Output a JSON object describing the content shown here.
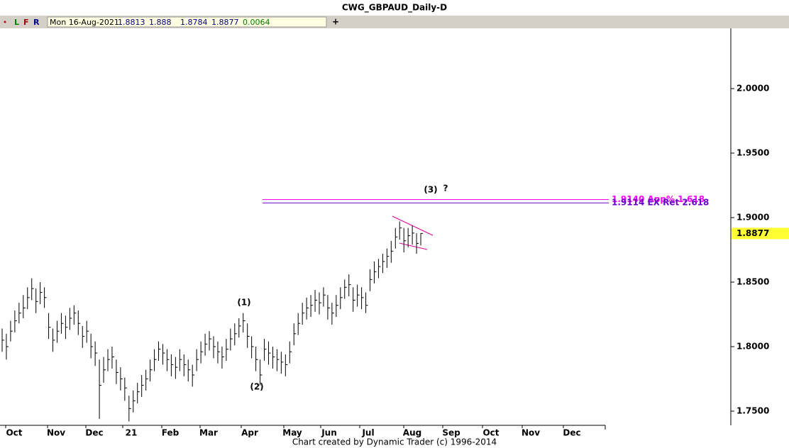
{
  "toolbar": {
    "dot": "•",
    "buttons": [
      "L",
      "F",
      "R"
    ],
    "date": "Mon 16-Aug-2021",
    "open": 1.8813,
    "high": 1.888,
    "low": 1.8784,
    "close": 1.8877,
    "change": 0.0064,
    "plus": "+"
  },
  "footer": "Chart created by Dynamic Trader  (c)  1996-2014",
  "chart_data": {
    "type": "ohlc",
    "title": "CWG_GBPAUD_Daily-D",
    "x_labels": [
      "Oct",
      "Nov",
      "Dec",
      "21",
      "Feb",
      "Mar",
      "Apr",
      "May",
      "Jun",
      "Jul",
      "Aug",
      "Sep",
      "Oct",
      "Nov",
      "Dec"
    ],
    "ylim": [
      1.7401,
      2.0467
    ],
    "yticks": [
      {
        "value": 1.75,
        "label": "1.7500"
      },
      {
        "value": 1.8,
        "label": "1.8000"
      },
      {
        "value": 1.85,
        "label": "1.8500"
      },
      {
        "value": 1.9,
        "label": "1.9000"
      },
      {
        "value": 1.95,
        "label": "1.9500"
      },
      {
        "value": 2.0,
        "label": "2.0000"
      }
    ],
    "high": [
      1.814,
      1.81,
      1.82,
      1.828,
      1.834,
      1.84,
      1.846,
      1.853,
      1.845,
      1.85,
      1.846,
      1.826,
      1.814,
      1.82,
      1.826,
      1.824,
      1.83,
      1.832,
      1.828,
      1.816,
      1.82,
      1.81,
      1.804,
      1.79,
      1.792,
      1.798,
      1.8,
      1.79,
      1.784,
      1.776,
      1.762,
      1.766,
      1.772,
      1.778,
      1.782,
      1.79,
      1.798,
      1.804,
      1.802,
      1.798,
      1.794,
      1.792,
      1.798,
      1.794,
      1.79,
      1.786,
      1.798,
      1.804,
      1.81,
      1.812,
      1.808,
      1.804,
      1.8,
      1.806,
      1.814,
      1.818,
      1.822,
      1.826,
      1.818,
      1.808,
      1.8,
      1.79,
      1.806,
      1.804,
      1.8,
      1.798,
      1.796,
      1.794,
      1.804,
      1.818,
      1.826,
      1.834,
      1.838,
      1.84,
      1.844,
      1.842,
      1.846,
      1.84,
      1.834,
      1.84,
      1.846,
      1.852,
      1.856,
      1.846,
      1.848,
      1.846,
      1.842,
      1.86,
      1.866,
      1.868,
      1.872,
      1.876,
      1.882,
      1.892,
      1.897,
      1.892,
      1.892,
      1.894,
      1.888,
      1.888
    ],
    "low": [
      1.796,
      1.79,
      1.804,
      1.811,
      1.818,
      1.822,
      1.829,
      1.836,
      1.826,
      1.833,
      1.83,
      1.806,
      1.796,
      1.803,
      1.81,
      1.806,
      1.813,
      1.817,
      1.809,
      1.799,
      1.803,
      1.791,
      1.785,
      1.744,
      1.772,
      1.781,
      1.783,
      1.771,
      1.766,
      1.758,
      1.742,
      1.749,
      1.756,
      1.761,
      1.766,
      1.773,
      1.781,
      1.789,
      1.786,
      1.781,
      1.777,
      1.775,
      1.781,
      1.777,
      1.773,
      1.769,
      1.781,
      1.787,
      1.793,
      1.797,
      1.791,
      1.787,
      1.783,
      1.789,
      1.797,
      1.801,
      1.807,
      1.811,
      1.799,
      1.791,
      1.781,
      1.77,
      1.789,
      1.786,
      1.783,
      1.781,
      1.779,
      1.777,
      1.787,
      1.801,
      1.809,
      1.817,
      1.821,
      1.823,
      1.827,
      1.825,
      1.831,
      1.821,
      1.817,
      1.823,
      1.829,
      1.837,
      1.839,
      1.827,
      1.831,
      1.829,
      1.826,
      1.843,
      1.849,
      1.853,
      1.857,
      1.861,
      1.865,
      1.876,
      1.883,
      1.873,
      1.877,
      1.879,
      1.872,
      1.8784
    ],
    "close": [
      1.805,
      1.8,
      1.812,
      1.82,
      1.826,
      1.83,
      1.838,
      1.845,
      1.835,
      1.842,
      1.838,
      1.815,
      1.805,
      1.812,
      1.818,
      1.815,
      1.822,
      1.826,
      1.818,
      1.808,
      1.812,
      1.8,
      1.795,
      1.77,
      1.782,
      1.79,
      1.792,
      1.78,
      1.775,
      1.768,
      1.752,
      1.758,
      1.765,
      1.77,
      1.775,
      1.782,
      1.79,
      1.798,
      1.795,
      1.79,
      1.786,
      1.784,
      1.79,
      1.786,
      1.782,
      1.778,
      1.79,
      1.796,
      1.802,
      1.806,
      1.8,
      1.796,
      1.792,
      1.798,
      1.806,
      1.81,
      1.816,
      1.82,
      1.808,
      1.8,
      1.79,
      1.778,
      1.798,
      1.795,
      1.792,
      1.79,
      1.788,
      1.786,
      1.796,
      1.81,
      1.818,
      1.826,
      1.83,
      1.832,
      1.836,
      1.834,
      1.84,
      1.83,
      1.826,
      1.832,
      1.838,
      1.846,
      1.848,
      1.836,
      1.84,
      1.838,
      1.832,
      1.852,
      1.858,
      1.862,
      1.866,
      1.87,
      1.874,
      1.885,
      1.892,
      1.882,
      1.886,
      1.888,
      1.88,
      1.8877
    ],
    "color": "#000000",
    "last_price": 1.8877,
    "last_price_color": "#ffff33",
    "levels": [
      {
        "value": 1.914,
        "label": "1.9140 App% 1.618",
        "color": "#ff00ff"
      },
      {
        "value": 1.9114,
        "label": "1.9114 EX Ret 2.618",
        "color": "#6a00c8"
      }
    ],
    "annotations": [
      "(1)",
      "(2)",
      "(3)",
      "?"
    ]
  }
}
